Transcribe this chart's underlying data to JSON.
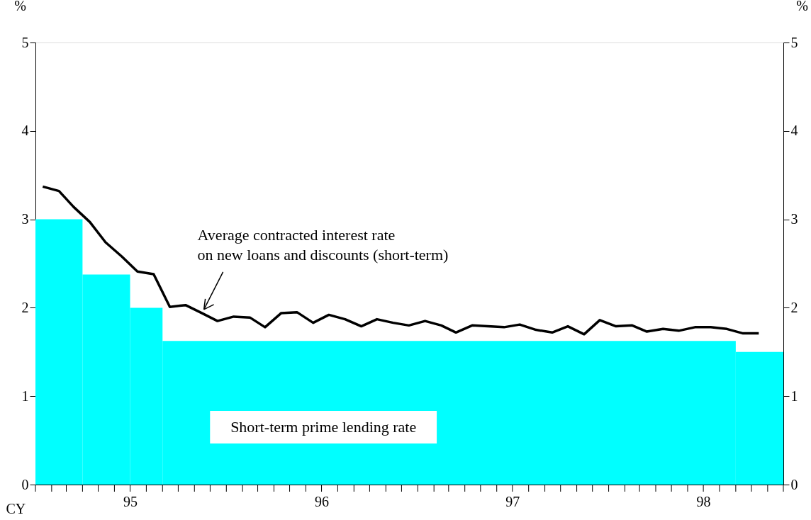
{
  "chart_data": {
    "type": "line",
    "xlabel": "CY",
    "ylabel": "%",
    "y2label": "%",
    "xlim": [
      "1995-01-01",
      "1998-12-01"
    ],
    "xticks": [
      {
        "value": "1995-01-01",
        "label": null
      },
      {
        "value": "1995-02-01",
        "label": null
      },
      {
        "value": "1995-03-01",
        "label": null
      },
      {
        "value": "1995-04-01",
        "label": null
      },
      {
        "value": "1995-05-01",
        "label": null
      },
      {
        "value": "1995-06-01",
        "label": null
      },
      {
        "value": "1995-07-01",
        "label": "95"
      },
      {
        "value": "1995-08-01",
        "label": null
      },
      {
        "value": "1995-09-01",
        "label": null
      },
      {
        "value": "1995-10-01",
        "label": null
      },
      {
        "value": "1995-11-01",
        "label": null
      },
      {
        "value": "1995-12-01",
        "label": null
      },
      {
        "value": "1996-01-01",
        "label": null
      },
      {
        "value": "1996-02-01",
        "label": null
      },
      {
        "value": "1996-03-01",
        "label": null
      },
      {
        "value": "1996-04-01",
        "label": null
      },
      {
        "value": "1996-05-01",
        "label": null
      },
      {
        "value": "1996-06-01",
        "label": null
      },
      {
        "value": "1996-07-01",
        "label": "96"
      },
      {
        "value": "1996-08-01",
        "label": null
      },
      {
        "value": "1996-09-01",
        "label": null
      },
      {
        "value": "1996-10-01",
        "label": null
      },
      {
        "value": "1996-11-01",
        "label": null
      },
      {
        "value": "1996-12-01",
        "label": null
      },
      {
        "value": "1997-01-01",
        "label": null
      },
      {
        "value": "1997-02-01",
        "label": null
      },
      {
        "value": "1997-03-01",
        "label": null
      },
      {
        "value": "1997-04-01",
        "label": null
      },
      {
        "value": "1997-05-01",
        "label": null
      },
      {
        "value": "1997-06-01",
        "label": null
      },
      {
        "value": "1997-07-01",
        "label": "97"
      },
      {
        "value": "1997-08-01",
        "label": null
      },
      {
        "value": "1997-09-01",
        "label": null
      },
      {
        "value": "1997-10-01",
        "label": null
      },
      {
        "value": "1997-11-01",
        "label": null
      },
      {
        "value": "1997-12-01",
        "label": null
      },
      {
        "value": "1998-01-01",
        "label": null
      },
      {
        "value": "1998-02-01",
        "label": null
      },
      {
        "value": "1998-03-01",
        "label": null
      },
      {
        "value": "1998-04-01",
        "label": null
      },
      {
        "value": "1998-05-01",
        "label": null
      },
      {
        "value": "1998-06-01",
        "label": null
      },
      {
        "value": "1998-07-01",
        "label": "98"
      },
      {
        "value": "1998-08-01",
        "label": null
      },
      {
        "value": "1998-09-01",
        "label": null
      },
      {
        "value": "1998-10-01",
        "label": null
      },
      {
        "value": "1998-11-01",
        "label": null
      },
      {
        "value": "1998-12-01",
        "label": null
      }
    ],
    "ylim": [
      0,
      5
    ],
    "yticks": [
      0,
      1,
      2,
      3,
      4,
      5
    ],
    "y2lim": [
      0,
      5
    ],
    "y2ticks": [
      0,
      1,
      2,
      3,
      4,
      5
    ],
    "grid": false,
    "series": [
      {
        "name": "Short-term prime lending rate",
        "type": "area",
        "color": "#00ffff",
        "x": [
          "1995-01-01",
          "1995-04-01",
          "1995-07-01",
          "1995-09-01",
          "1998-09-01",
          "1998-12-01"
        ],
        "values": [
          3.0,
          2.375,
          2.0,
          1.625,
          1.5,
          1.5
        ]
      },
      {
        "name": "Average contracted interest rate\n on new loans and discounts (short-term)",
        "color": "#000000",
        "x": [
          "1995-01-15",
          "1995-02-15",
          "1995-03-15",
          "1995-04-15",
          "1995-05-15",
          "1995-06-15",
          "1995-07-15",
          "1995-08-15",
          "1995-09-15",
          "1995-10-15",
          "1995-11-15",
          "1995-12-15",
          "1996-01-15",
          "1996-02-15",
          "1996-03-15",
          "1996-04-15",
          "1996-05-15",
          "1996-06-15",
          "1996-07-15",
          "1996-08-15",
          "1996-09-15",
          "1996-10-15",
          "1996-11-15",
          "1996-12-15",
          "1997-01-15",
          "1997-02-15",
          "1997-03-15",
          "1997-04-15",
          "1997-05-15",
          "1997-06-15",
          "1997-07-15",
          "1997-08-15",
          "1997-09-15",
          "1997-10-15",
          "1997-11-15",
          "1997-12-15",
          "1998-01-15",
          "1998-02-15",
          "1998-03-15",
          "1998-04-15",
          "1998-05-15",
          "1998-06-15",
          "1998-07-15",
          "1998-08-15",
          "1998-09-15",
          "1998-10-15"
        ],
        "values": [
          3.37,
          3.32,
          3.14,
          2.97,
          2.74,
          2.58,
          2.41,
          2.38,
          2.01,
          2.03,
          1.94,
          1.85,
          1.9,
          1.89,
          1.78,
          1.94,
          1.95,
          1.83,
          1.92,
          1.87,
          1.79,
          1.87,
          1.83,
          1.8,
          1.85,
          1.8,
          1.72,
          1.8,
          1.79,
          1.78,
          1.81,
          1.75,
          1.72,
          1.79,
          1.7,
          1.86,
          1.79,
          1.8,
          1.73,
          1.76,
          1.74,
          1.78,
          1.78,
          1.76,
          1.71,
          1.71
        ]
      }
    ]
  }
}
